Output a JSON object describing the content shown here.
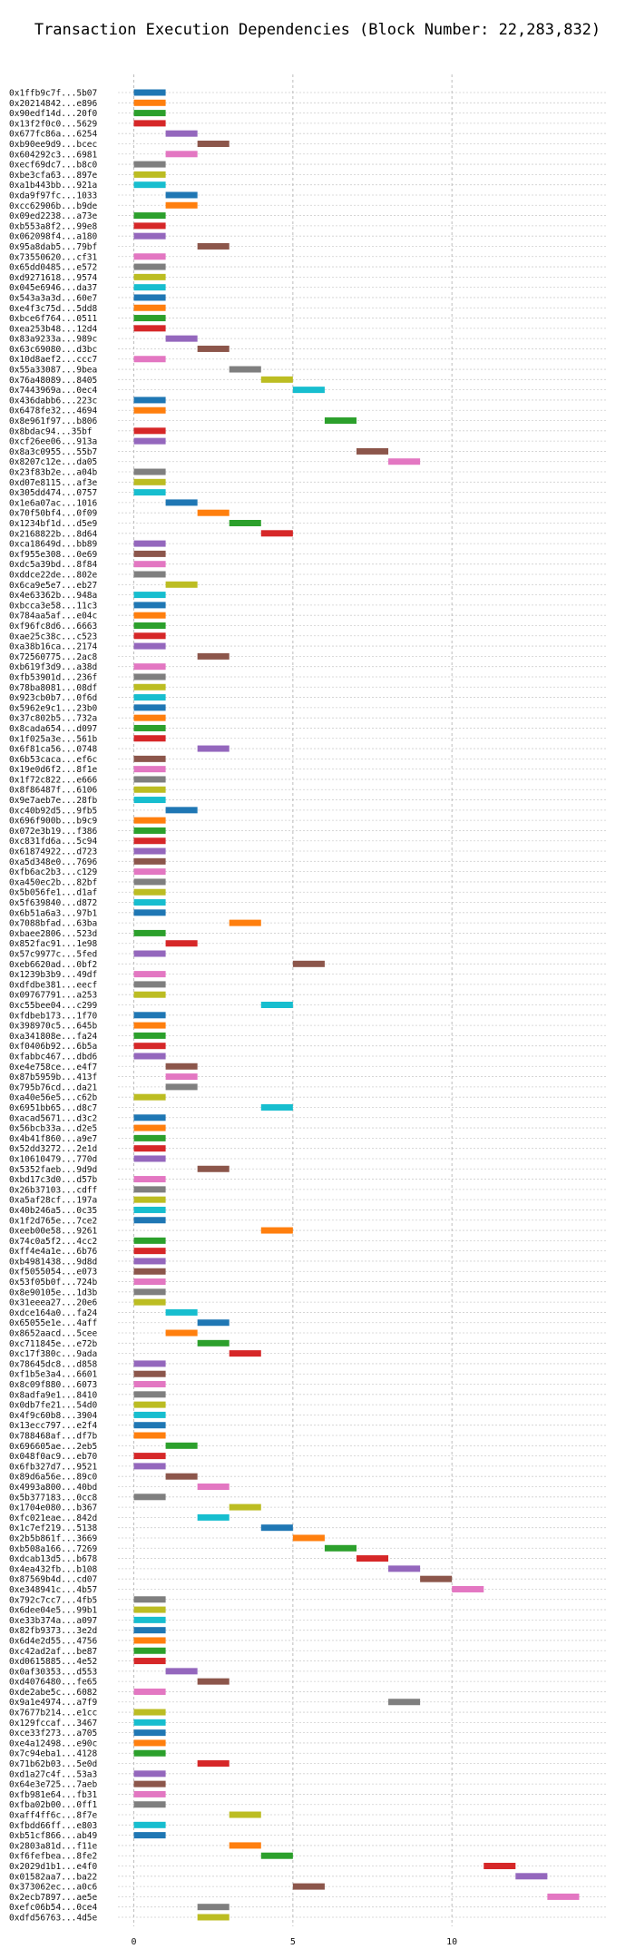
{
  "chart_data": {
    "type": "bar",
    "title": "Transaction Execution Dependencies (Block Number: 22,283,832)",
    "xlabel": "",
    "ylabel": "",
    "xlim": [
      -0.5,
      14.9
    ],
    "xticks": [
      0,
      5,
      10
    ],
    "grid": true,
    "palette": [
      "#1f77b4",
      "#ff7f0e",
      "#2ca02c",
      "#d62728",
      "#9467bd",
      "#8c564b",
      "#e377c2",
      "#7f7f7f",
      "#bcbd22",
      "#17becf"
    ],
    "transactions": [
      {
        "label": "0x1ffb9c7f...5b07",
        "start": 0
      },
      {
        "label": "0x20214842...e896",
        "start": 0
      },
      {
        "label": "0x90edf14d...20f0",
        "start": 0
      },
      {
        "label": "0x13f2f0c0...5629",
        "start": 0
      },
      {
        "label": "0x677fc86a...6254",
        "start": 1
      },
      {
        "label": "0xb90ee9d9...bcec",
        "start": 2
      },
      {
        "label": "0x604292c3...6981",
        "start": 1
      },
      {
        "label": "0xecf69dc7...b8c0",
        "start": 0
      },
      {
        "label": "0xbe3cfa63...897e",
        "start": 0
      },
      {
        "label": "0xa1b443bb...921a",
        "start": 0
      },
      {
        "label": "0xda9f97fc...1033",
        "start": 1
      },
      {
        "label": "0xcc62906b...b9de",
        "start": 1
      },
      {
        "label": "0x09ed2238...a73e",
        "start": 0
      },
      {
        "label": "0xb553a8f2...99e8",
        "start": 0
      },
      {
        "label": "0x062098f4...a180",
        "start": 0
      },
      {
        "label": "0x95a8dab5...79bf",
        "start": 2
      },
      {
        "label": "0x73550620...cf31",
        "start": 0
      },
      {
        "label": "0x65dd0485...e572",
        "start": 0
      },
      {
        "label": "0xd9271618...9574",
        "start": 0
      },
      {
        "label": "0x045e6946...da37",
        "start": 0
      },
      {
        "label": "0x543a3a3d...60e7",
        "start": 0
      },
      {
        "label": "0xe4f3c75d...5dd8",
        "start": 0
      },
      {
        "label": "0xbce6f764...0511",
        "start": 0
      },
      {
        "label": "0xea253b48...12d4",
        "start": 0
      },
      {
        "label": "0x83a9233a...989c",
        "start": 1
      },
      {
        "label": "0x63c69080...d3bc",
        "start": 2
      },
      {
        "label": "0x10d8aef2...ccc7",
        "start": 0
      },
      {
        "label": "0x55a33087...9bea",
        "start": 3
      },
      {
        "label": "0x76a48089...8405",
        "start": 4
      },
      {
        "label": "0x7443969a...0ec4",
        "start": 5
      },
      {
        "label": "0x436dabb6...223c",
        "start": 0
      },
      {
        "label": "0x6478fe32...4694",
        "start": 0
      },
      {
        "label": "0x8e961f97...b806",
        "start": 6
      },
      {
        "label": "0x8bdac94...35bf",
        "start": 0
      },
      {
        "label": "0xcf26ee06...913a",
        "start": 0
      },
      {
        "label": "0x8a3c0955...55b7",
        "start": 7
      },
      {
        "label": "0x8207c12e...da05",
        "start": 8
      },
      {
        "label": "0x23f83b2e...a04b",
        "start": 0
      },
      {
        "label": "0xd07e8115...af3e",
        "start": 0
      },
      {
        "label": "0x305dd474...0757",
        "start": 0
      },
      {
        "label": "0x1e6a07ac...1016",
        "start": 1
      },
      {
        "label": "0x70f50bf4...0f09",
        "start": 2
      },
      {
        "label": "0x1234bf1d...d5e9",
        "start": 3
      },
      {
        "label": "0x2168822b...8d64",
        "start": 4
      },
      {
        "label": "0xca18649d...bb89",
        "start": 0
      },
      {
        "label": "0xf955e308...0e69",
        "start": 0
      },
      {
        "label": "0xdc5a39bd...8f84",
        "start": 0
      },
      {
        "label": "0xddce22de...802e",
        "start": 0
      },
      {
        "label": "0x6ca9e5e7...eb27",
        "start": 1
      },
      {
        "label": "0x4e63362b...948a",
        "start": 0
      },
      {
        "label": "0xbcca3e58...11c3",
        "start": 0
      },
      {
        "label": "0x784aa5af...e04c",
        "start": 0
      },
      {
        "label": "0xf96fc8d6...6663",
        "start": 0
      },
      {
        "label": "0xae25c38c...c523",
        "start": 0
      },
      {
        "label": "0xa38b16ca...2174",
        "start": 0
      },
      {
        "label": "0x72560775...2ac8",
        "start": 2
      },
      {
        "label": "0xb619f3d9...a38d",
        "start": 0
      },
      {
        "label": "0xfb53901d...236f",
        "start": 0
      },
      {
        "label": "0x78ba8081...08df",
        "start": 0
      },
      {
        "label": "0x923cb0b7...0f6d",
        "start": 0
      },
      {
        "label": "0x5962e9c1...23b0",
        "start": 0
      },
      {
        "label": "0x37c802b5...732a",
        "start": 0
      },
      {
        "label": "0x8cada654...d097",
        "start": 0
      },
      {
        "label": "0x1f025a3e...561b",
        "start": 0
      },
      {
        "label": "0x6f81ca56...0748",
        "start": 2
      },
      {
        "label": "0x6b53caca...ef6c",
        "start": 0
      },
      {
        "label": "0x19e0d6f2...8f1e",
        "start": 0
      },
      {
        "label": "0x1f72c822...e666",
        "start": 0
      },
      {
        "label": "0x8f86487f...6106",
        "start": 0
      },
      {
        "label": "0x9e7aeb7e...28fb",
        "start": 0
      },
      {
        "label": "0xc40b92d5...9fb5",
        "start": 1
      },
      {
        "label": "0x696f900b...b9c9",
        "start": 0
      },
      {
        "label": "0x072e3b19...f386",
        "start": 0
      },
      {
        "label": "0xc831fd6a...5c94",
        "start": 0
      },
      {
        "label": "0x61874922...d723",
        "start": 0
      },
      {
        "label": "0xa5d348e0...7696",
        "start": 0
      },
      {
        "label": "0xfb6ac2b3...c129",
        "start": 0
      },
      {
        "label": "0xa450ec2b...82bf",
        "start": 0
      },
      {
        "label": "0x5b056fe1...d1af",
        "start": 0
      },
      {
        "label": "0x5f639840...d872",
        "start": 0
      },
      {
        "label": "0x6b51a6a3...97b1",
        "start": 0
      },
      {
        "label": "0x7088bfad...63ba",
        "start": 3
      },
      {
        "label": "0xbaee2806...523d",
        "start": 0
      },
      {
        "label": "0x852fac91...1e98",
        "start": 1
      },
      {
        "label": "0x57c9977c...5fed",
        "start": 0
      },
      {
        "label": "0xeb6620ad...0bf2",
        "start": 5
      },
      {
        "label": "0x1239b3b9...49df",
        "start": 0
      },
      {
        "label": "0xdfdbe381...eecf",
        "start": 0
      },
      {
        "label": "0x09767791...a253",
        "start": 0
      },
      {
        "label": "0xc55bee04...c299",
        "start": 4
      },
      {
        "label": "0xfdbeb173...1f70",
        "start": 0
      },
      {
        "label": "0x398970c5...645b",
        "start": 0
      },
      {
        "label": "0xa341808e...fa24",
        "start": 0
      },
      {
        "label": "0xf0406b92...6b5a",
        "start": 0
      },
      {
        "label": "0xfabbc467...dbd6",
        "start": 0
      },
      {
        "label": "0xe4e758ce...e4f7",
        "start": 1
      },
      {
        "label": "0x87b5959b...413f",
        "start": 1
      },
      {
        "label": "0x795b76cd...da21",
        "start": 1
      },
      {
        "label": "0xa40e56e5...c62b",
        "start": 0
      },
      {
        "label": "0x6951bb65...d8c7",
        "start": 4
      },
      {
        "label": "0xacad5671...d3c2",
        "start": 0
      },
      {
        "label": "0x56bcb33a...d2e5",
        "start": 0
      },
      {
        "label": "0x4b41f860...a9e7",
        "start": 0
      },
      {
        "label": "0x52dd3272...2e1d",
        "start": 0
      },
      {
        "label": "0x10610479...770d",
        "start": 0
      },
      {
        "label": "0x5352faeb...9d9d",
        "start": 2
      },
      {
        "label": "0xbd17c3d0...d57b",
        "start": 0
      },
      {
        "label": "0x26b37103...cdff",
        "start": 0
      },
      {
        "label": "0xa5af28cf...197a",
        "start": 0
      },
      {
        "label": "0x40b246a5...0c35",
        "start": 0
      },
      {
        "label": "0x1f2d765e...7ce2",
        "start": 0
      },
      {
        "label": "0xeeb00e58...9261",
        "start": 4
      },
      {
        "label": "0x74c0a5f2...4cc2",
        "start": 0
      },
      {
        "label": "0xff4e4a1e...6b76",
        "start": 0
      },
      {
        "label": "0xb4981438...9d8d",
        "start": 0
      },
      {
        "label": "0xf5055054...e073",
        "start": 0
      },
      {
        "label": "0x53f05b0f...724b",
        "start": 0
      },
      {
        "label": "0x8e90105e...1d3b",
        "start": 0
      },
      {
        "label": "0x31eeea27...20e6",
        "start": 0
      },
      {
        "label": "0xdce164a0...fa24",
        "start": 1
      },
      {
        "label": "0x65055e1e...4aff",
        "start": 2
      },
      {
        "label": "0x8652aacd...5cee",
        "start": 1
      },
      {
        "label": "0xc711845e...e72b",
        "start": 2
      },
      {
        "label": "0xc17f380c...9ada",
        "start": 3
      },
      {
        "label": "0x78645dc8...d858",
        "start": 0
      },
      {
        "label": "0xf1b5e3a4...6601",
        "start": 0
      },
      {
        "label": "0x8c09f880...6073",
        "start": 0
      },
      {
        "label": "0x8adfa9e1...8410",
        "start": 0
      },
      {
        "label": "0x0db7fe21...54d0",
        "start": 0
      },
      {
        "label": "0x4f9c60b8...3904",
        "start": 0
      },
      {
        "label": "0x13ecc797...e2f4",
        "start": 0
      },
      {
        "label": "0x788468af...df7b",
        "start": 0
      },
      {
        "label": "0x696605ae...2eb5",
        "start": 1
      },
      {
        "label": "0x048f0ac9...eb70",
        "start": 0
      },
      {
        "label": "0x6fb327d7...9521",
        "start": 0
      },
      {
        "label": "0x89d6a56e...89c0",
        "start": 1
      },
      {
        "label": "0x4993a800...40bd",
        "start": 2
      },
      {
        "label": "0x5b377183...0cc8",
        "start": 0
      },
      {
        "label": "0x1704e080...b367",
        "start": 3
      },
      {
        "label": "0xfc021eae...842d",
        "start": 2
      },
      {
        "label": "0x1c7ef219...5138",
        "start": 4
      },
      {
        "label": "0x2b5b861f...3669",
        "start": 5
      },
      {
        "label": "0xb508a166...7269",
        "start": 6
      },
      {
        "label": "0xdcab13d5...b678",
        "start": 7
      },
      {
        "label": "0x4ea432fb...b108",
        "start": 8
      },
      {
        "label": "0x87569b4d...cd07",
        "start": 9
      },
      {
        "label": "0xe348941c...4b57",
        "start": 10
      },
      {
        "label": "0x792c7cc7...4fb5",
        "start": 0
      },
      {
        "label": "0x6dee04e5...99b1",
        "start": 0
      },
      {
        "label": "0xe33b374a...a097",
        "start": 0
      },
      {
        "label": "0x82fb9373...3e2d",
        "start": 0
      },
      {
        "label": "0x6d4e2d55...4756",
        "start": 0
      },
      {
        "label": "0xc42ad2af...be87",
        "start": 0
      },
      {
        "label": "0xd0615885...4e52",
        "start": 0
      },
      {
        "label": "0x0af30353...d553",
        "start": 1
      },
      {
        "label": "0xd4076480...fe65",
        "start": 2
      },
      {
        "label": "0xde2abe5c...6082",
        "start": 0
      },
      {
        "label": "0x9a1e4974...a7f9",
        "start": 8
      },
      {
        "label": "0x7677b214...e1cc",
        "start": 0
      },
      {
        "label": "0x129fccaf...3467",
        "start": 0
      },
      {
        "label": "0xce33f273...a705",
        "start": 0
      },
      {
        "label": "0xe4a12498...e90c",
        "start": 0
      },
      {
        "label": "0x7c94eba1...4128",
        "start": 0
      },
      {
        "label": "0x71b62b03...5e0d",
        "start": 2
      },
      {
        "label": "0xd1a27c4f...53a3",
        "start": 0
      },
      {
        "label": "0x64e3e725...7aeb",
        "start": 0
      },
      {
        "label": "0xfb981e64...fb31",
        "start": 0
      },
      {
        "label": "0xfba02b00...0ff1",
        "start": 0
      },
      {
        "label": "0xaff4ff6c...8f7e",
        "start": 3
      },
      {
        "label": "0xfbdd66ff...e803",
        "start": 0
      },
      {
        "label": "0xb51cf866...ab49",
        "start": 0
      },
      {
        "label": "0x2803a81d...f11e",
        "start": 3
      },
      {
        "label": "0xf6fefbea...8fe2",
        "start": 4
      },
      {
        "label": "0x2029d1b1...e4f0",
        "start": 11
      },
      {
        "label": "0x01582aa7...ba22",
        "start": 12
      },
      {
        "label": "0x373062ec...a0c6",
        "start": 5
      },
      {
        "label": "0x2ecb7897...ae5e",
        "start": 13
      },
      {
        "label": "0xefc06b54...0ce4",
        "start": 2
      },
      {
        "label": "0xdfd56763...4d5e",
        "start": 2
      }
    ]
  }
}
